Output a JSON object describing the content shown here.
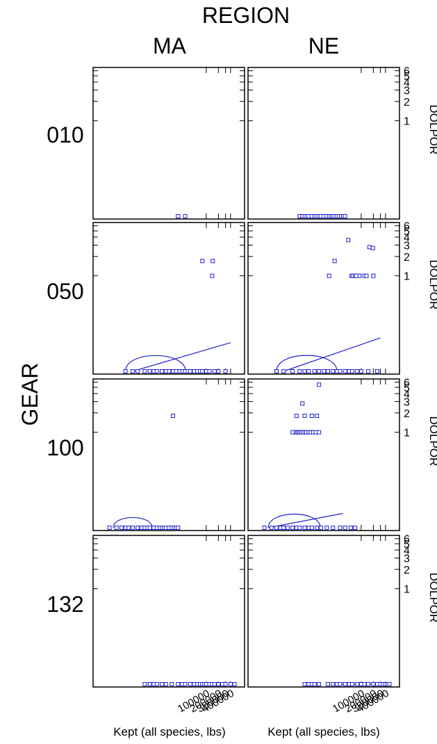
{
  "chart_data": {
    "type": "scatter",
    "col_facet_title": "REGION",
    "row_facet_title": "GEAR",
    "columns": [
      "MA",
      "NE"
    ],
    "rows": [
      "010",
      "050",
      "100",
      "132"
    ],
    "xlabel": "Kept (all species, lbs)",
    "ylabel_right": "DOLPOR",
    "x_scale": "log",
    "x_ticks": [
      "100000",
      "200000",
      "300000",
      "400000"
    ],
    "y_ticks": [
      "1",
      "2",
      "3",
      "4",
      "5",
      "6"
    ],
    "y_range": [
      0,
      6
    ],
    "marker_color": "#1f1fd0",
    "panels": [
      {
        "row": "010",
        "col": "MA",
        "points": [
          [
            20000,
            0
          ],
          [
            30000,
            0
          ]
        ]
      },
      {
        "row": "010",
        "col": "NE",
        "points": [
          [
            3000,
            0
          ],
          [
            3500,
            0
          ],
          [
            4000,
            0
          ],
          [
            4500,
            0
          ],
          [
            5000,
            0
          ],
          [
            6000,
            0
          ],
          [
            7000,
            0
          ],
          [
            8000,
            0
          ],
          [
            9000,
            0
          ],
          [
            10000,
            0
          ],
          [
            12000,
            0
          ],
          [
            14000,
            0
          ],
          [
            16000,
            0
          ],
          [
            18000,
            0
          ],
          [
            20000,
            0
          ],
          [
            22000,
            0
          ],
          [
            25000,
            0
          ],
          [
            28000,
            0
          ],
          [
            32000,
            0
          ],
          [
            36000,
            0
          ],
          [
            40000,
            0
          ]
        ]
      },
      {
        "row": "050",
        "col": "MA",
        "points": [
          [
            1000,
            0
          ],
          [
            1500,
            0
          ],
          [
            2000,
            0
          ],
          [
            3000,
            0
          ],
          [
            4000,
            0
          ],
          [
            5000,
            0
          ],
          [
            6000,
            0
          ],
          [
            8000,
            0
          ],
          [
            10000,
            0
          ],
          [
            12000,
            0
          ],
          [
            15000,
            0
          ],
          [
            18000,
            0
          ],
          [
            22000,
            0
          ],
          [
            26000,
            0
          ],
          [
            30000,
            0
          ],
          [
            35000,
            0
          ],
          [
            40000,
            0
          ],
          [
            50000,
            0
          ],
          [
            60000,
            0
          ],
          [
            70000,
            0
          ],
          [
            80000,
            0
          ],
          [
            100000,
            0
          ],
          [
            120000,
            0
          ],
          [
            160000,
            0
          ],
          [
            200000,
            0
          ],
          [
            300000,
            0
          ],
          [
            80000,
            1.7
          ],
          [
            145000,
            1.7
          ],
          [
            140000,
            1
          ]
        ],
        "smooth_line": [
          [
            1500,
            0
          ],
          [
            400000,
            0.3
          ]
        ],
        "loop": true
      },
      {
        "row": "050",
        "col": "NE",
        "points": [
          [
            800,
            0
          ],
          [
            1200,
            0
          ],
          [
            2000,
            0
          ],
          [
            3000,
            0
          ],
          [
            4000,
            0
          ],
          [
            5000,
            0
          ],
          [
            7000,
            0
          ],
          [
            9000,
            0
          ],
          [
            12000,
            0
          ],
          [
            15000,
            0
          ],
          [
            20000,
            0
          ],
          [
            25000,
            0
          ],
          [
            30000,
            0
          ],
          [
            40000,
            0
          ],
          [
            50000,
            0
          ],
          [
            60000,
            0
          ],
          [
            80000,
            0
          ],
          [
            100000,
            0
          ],
          [
            150000,
            0
          ],
          [
            250000,
            0
          ],
          [
            48000,
            3.6
          ],
          [
            22000,
            1.7
          ],
          [
            160000,
            2.8
          ],
          [
            195000,
            2.7
          ],
          [
            16000,
            1
          ],
          [
            58000,
            1
          ],
          [
            62000,
            1
          ],
          [
            70000,
            1
          ],
          [
            90000,
            1
          ],
          [
            120000,
            1
          ],
          [
            135000,
            1
          ],
          [
            200000,
            1
          ],
          [
            76000,
            1
          ]
        ],
        "smooth_line": [
          [
            1200,
            0
          ],
          [
            300000,
            0.35
          ]
        ],
        "loop": true
      },
      {
        "row": "100",
        "col": "MA",
        "points": [
          [
            400,
            0
          ],
          [
            600,
            0
          ],
          [
            800,
            0
          ],
          [
            1000,
            0
          ],
          [
            1200,
            0
          ],
          [
            1500,
            0
          ],
          [
            2000,
            0
          ],
          [
            2500,
            0
          ],
          [
            3000,
            0
          ],
          [
            3500,
            0
          ],
          [
            4000,
            0
          ],
          [
            5000,
            0
          ],
          [
            6000,
            0
          ],
          [
            7000,
            0
          ],
          [
            8000,
            0
          ],
          [
            9000,
            0
          ],
          [
            10000,
            0
          ],
          [
            12000,
            0
          ],
          [
            14000,
            0
          ],
          [
            16000,
            0
          ],
          [
            18000,
            0
          ],
          [
            20000,
            0
          ],
          [
            15000,
            1.8
          ]
        ],
        "loop": true
      },
      {
        "row": "100",
        "col": "NE",
        "points": [
          [
            400,
            0
          ],
          [
            600,
            0
          ],
          [
            800,
            0
          ],
          [
            1000,
            0
          ],
          [
            1200,
            0
          ],
          [
            1500,
            0
          ],
          [
            2000,
            0
          ],
          [
            2500,
            0
          ],
          [
            3000,
            0
          ],
          [
            4000,
            0
          ],
          [
            5000,
            0
          ],
          [
            6000,
            0
          ],
          [
            8000,
            0
          ],
          [
            10000,
            0
          ],
          [
            14000,
            0
          ],
          [
            20000,
            0
          ],
          [
            30000,
            0
          ],
          [
            40000,
            0
          ],
          [
            55000,
            0
          ],
          [
            70000,
            0
          ],
          [
            2000,
            1
          ],
          [
            2400,
            1
          ],
          [
            2600,
            1
          ],
          [
            2800,
            1
          ],
          [
            3000,
            1
          ],
          [
            3300,
            1
          ],
          [
            3600,
            1
          ],
          [
            4000,
            1
          ],
          [
            4400,
            1
          ],
          [
            5000,
            1
          ],
          [
            5600,
            1
          ],
          [
            6500,
            1
          ],
          [
            7500,
            1
          ],
          [
            9000,
            1
          ],
          [
            2500,
            1.8
          ],
          [
            4000,
            1.8
          ],
          [
            6000,
            1.8
          ],
          [
            3500,
            2.8
          ],
          [
            8000,
            1.8
          ],
          [
            9000,
            5.5
          ]
        ],
        "smooth_line": [
          [
            500,
            0
          ],
          [
            35000,
            0.15
          ]
        ],
        "loop": true
      },
      {
        "row": "132",
        "col": "MA",
        "points": [
          [
            3000,
            0
          ],
          [
            4000,
            0
          ],
          [
            5000,
            0
          ],
          [
            6000,
            0
          ],
          [
            8000,
            0
          ],
          [
            10000,
            0
          ],
          [
            14000,
            0
          ],
          [
            20000,
            0
          ],
          [
            25000,
            0
          ],
          [
            30000,
            0
          ],
          [
            40000,
            0
          ],
          [
            50000,
            0
          ],
          [
            60000,
            0
          ],
          [
            70000,
            0
          ],
          [
            80000,
            0
          ],
          [
            90000,
            0
          ],
          [
            100000,
            0
          ],
          [
            120000,
            0
          ],
          [
            140000,
            0
          ],
          [
            160000,
            0
          ],
          [
            200000,
            0
          ],
          [
            250000,
            0
          ],
          [
            300000,
            0
          ],
          [
            400000,
            0
          ],
          [
            500000,
            0
          ]
        ]
      },
      {
        "row": "132",
        "col": "NE",
        "points": [
          [
            4000,
            0
          ],
          [
            5000,
            0
          ],
          [
            6000,
            0
          ],
          [
            7000,
            0
          ],
          [
            9000,
            0
          ],
          [
            15000,
            0
          ],
          [
            20000,
            0
          ],
          [
            25000,
            0
          ],
          [
            30000,
            0
          ],
          [
            40000,
            0
          ],
          [
            50000,
            0
          ],
          [
            60000,
            0
          ],
          [
            80000,
            0
          ],
          [
            100000,
            0
          ],
          [
            120000,
            0
          ],
          [
            150000,
            0
          ],
          [
            200000,
            0
          ],
          [
            250000,
            0
          ],
          [
            300000,
            0
          ],
          [
            350000,
            0
          ],
          [
            400000,
            0
          ],
          [
            450000,
            0
          ],
          [
            500000,
            0
          ]
        ],
        "smooth_line": [
          [
            30000,
            0
          ],
          [
            500000,
            0
          ]
        ]
      }
    ]
  }
}
